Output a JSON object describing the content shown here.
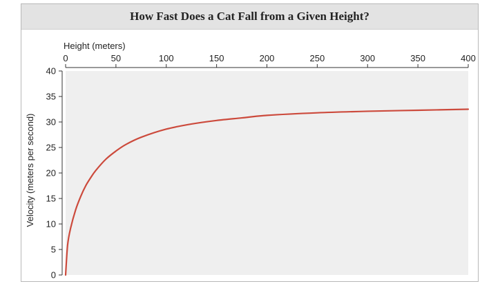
{
  "chart_data": {
    "type": "line",
    "title": "How Fast Does a Cat Fall from a Given Height?",
    "xlabel": "Height (meters)",
    "ylabel": "Velocity (meters per second)",
    "xlim": [
      0,
      400
    ],
    "ylim": [
      0,
      40
    ],
    "x_ticks": [
      0,
      50,
      100,
      150,
      200,
      250,
      300,
      350,
      400
    ],
    "y_ticks": [
      0,
      5,
      10,
      15,
      20,
      25,
      30,
      35,
      40
    ],
    "x_axis_position": "top",
    "grid": false,
    "series": [
      {
        "color": "#cc4a3c",
        "points": [
          [
            0,
            0
          ],
          [
            2,
            5.9
          ],
          [
            5,
            9.2
          ],
          [
            10,
            12.8
          ],
          [
            15,
            15.4
          ],
          [
            20,
            17.5
          ],
          [
            25,
            19.1
          ],
          [
            30,
            20.5
          ],
          [
            40,
            22.7
          ],
          [
            50,
            24.3
          ],
          [
            60,
            25.6
          ],
          [
            75,
            27.0
          ],
          [
            100,
            28.6
          ],
          [
            125,
            29.6
          ],
          [
            150,
            30.3
          ],
          [
            175,
            30.8
          ],
          [
            200,
            31.3
          ],
          [
            250,
            31.8
          ],
          [
            300,
            32.1
          ],
          [
            350,
            32.3
          ],
          [
            400,
            32.5
          ]
        ]
      }
    ],
    "colors": {
      "plot_background": "#efefef",
      "title_background": "#e3e3e3"
    }
  }
}
